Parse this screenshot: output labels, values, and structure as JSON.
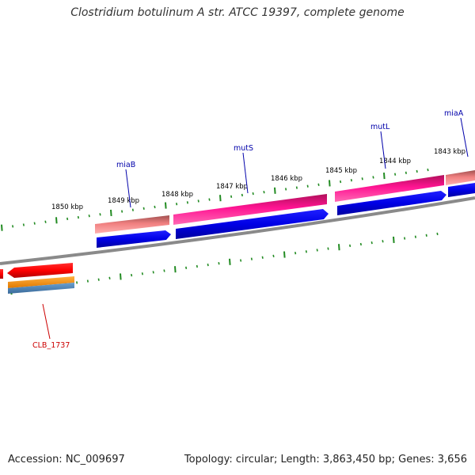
{
  "title": "Clostridium botulinum A str. ATCC 19397, complete genome",
  "footer": {
    "accession": "Accession: NC_009697",
    "summary": "Topology: circular; Length: 3,863,450 bp; Genes: 3,656"
  },
  "kbp_labels": [
    "1850 kbp",
    "1849 kbp",
    "1848 kbp",
    "1847 kbp",
    "1846 kbp",
    "1845 kbp",
    "1844 kbp",
    "1843 kbp"
  ],
  "gene_labels": [
    {
      "text": "miaB",
      "color": "#0000aa"
    },
    {
      "text": "mutS",
      "color": "#0000aa"
    },
    {
      "text": "mutL",
      "color": "#0000aa"
    },
    {
      "text": "miaA",
      "color": "#0000aa"
    },
    {
      "text": "CLB_1737",
      "color": "#cc0000"
    }
  ],
  "colors": {
    "backbone": "#7f7f7f",
    "cds_forward": "#0000e6",
    "pink_feature": "#ff1493",
    "salmon_feature": "#f08080",
    "red_feature": "#ff0000",
    "orange_feature": "#ff8c00",
    "steelblue_feature": "#4682b4",
    "tick": "#228b22"
  }
}
